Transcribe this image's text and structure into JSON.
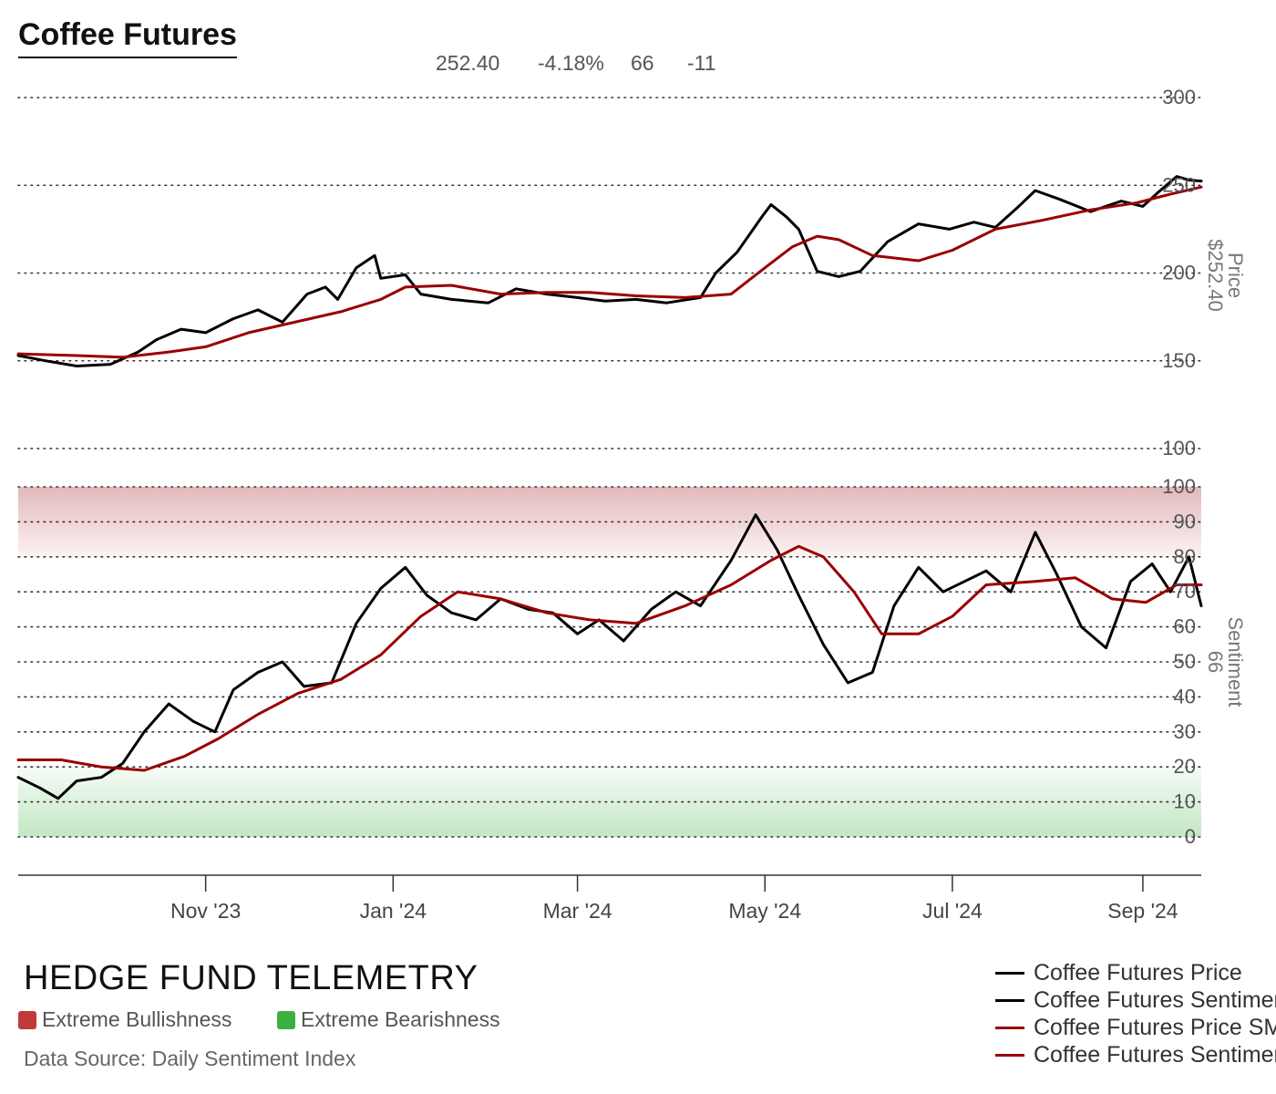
{
  "title": "Coffee Futures",
  "stats": [
    "252.40",
    "-4.18%",
    "66",
    "-11"
  ],
  "brand": "HEDGE FUND TELEMETRY",
  "key": [
    {
      "label": "Extreme Bullishness",
      "color": "#c0393b"
    },
    {
      "label": "Extreme Bearishness",
      "color": "#3cb043"
    }
  ],
  "source": "Data Source: Daily Sentiment Index",
  "legend": [
    {
      "label": "Coffee Futures Price",
      "color": "#000000"
    },
    {
      "label": "Coffee Futures Sentiment",
      "color": "#000000"
    },
    {
      "label": "Coffee Futures Price SMA",
      "color": "#990000"
    },
    {
      "label": "Coffee Futures Sentiment SMA",
      "color": "#990000"
    }
  ],
  "chart_data": [
    {
      "type": "line",
      "axis_label": "Price",
      "axis_value": "$252.40",
      "ylim": [
        100,
        300
      ],
      "yticks": [
        100,
        150,
        200,
        250,
        300
      ],
      "grid": true,
      "x_range": [
        "2023-09-01",
        "2024-09-20"
      ],
      "series": [
        {
          "name": "Coffee Futures Price",
          "color": "#000000",
          "points": [
            [
              "2023-09-01",
              153
            ],
            [
              "2023-09-10",
              150
            ],
            [
              "2023-09-20",
              147
            ],
            [
              "2023-10-01",
              148
            ],
            [
              "2023-10-10",
              155
            ],
            [
              "2023-10-16",
              162
            ],
            [
              "2023-10-24",
              168
            ],
            [
              "2023-11-01",
              166
            ],
            [
              "2023-11-10",
              174
            ],
            [
              "2023-11-18",
              179
            ],
            [
              "2023-11-26",
              172
            ],
            [
              "2023-12-04",
              188
            ],
            [
              "2023-12-10",
              192
            ],
            [
              "2023-12-14",
              185
            ],
            [
              "2023-12-20",
              203
            ],
            [
              "2023-12-26",
              210
            ],
            [
              "2023-12-28",
              197
            ],
            [
              "2024-01-05",
              199
            ],
            [
              "2024-01-10",
              188
            ],
            [
              "2024-01-20",
              185
            ],
            [
              "2024-02-01",
              183
            ],
            [
              "2024-02-10",
              191
            ],
            [
              "2024-02-20",
              188
            ],
            [
              "2024-03-01",
              186
            ],
            [
              "2024-03-10",
              184
            ],
            [
              "2024-03-20",
              185
            ],
            [
              "2024-03-30",
              183
            ],
            [
              "2024-04-10",
              186
            ],
            [
              "2024-04-15",
              200
            ],
            [
              "2024-04-22",
              212
            ],
            [
              "2024-04-30",
              232
            ],
            [
              "2024-05-03",
              239
            ],
            [
              "2024-05-08",
              232
            ],
            [
              "2024-05-12",
              225
            ],
            [
              "2024-05-18",
              201
            ],
            [
              "2024-05-25",
              198
            ],
            [
              "2024-06-01",
              201
            ],
            [
              "2024-06-10",
              218
            ],
            [
              "2024-06-20",
              228
            ],
            [
              "2024-06-30",
              225
            ],
            [
              "2024-07-08",
              229
            ],
            [
              "2024-07-15",
              226
            ],
            [
              "2024-07-22",
              237
            ],
            [
              "2024-07-28",
              247
            ],
            [
              "2024-08-05",
              242
            ],
            [
              "2024-08-15",
              235
            ],
            [
              "2024-08-25",
              241
            ],
            [
              "2024-09-01",
              238
            ],
            [
              "2024-09-06",
              246
            ],
            [
              "2024-09-12",
              255
            ],
            [
              "2024-09-16",
              253
            ],
            [
              "2024-09-20",
              252.4
            ]
          ]
        },
        {
          "name": "Coffee Futures Price SMA",
          "color": "#990000",
          "points": [
            [
              "2023-09-01",
              154
            ],
            [
              "2023-09-20",
              153
            ],
            [
              "2023-10-05",
              152
            ],
            [
              "2023-10-20",
              155
            ],
            [
              "2023-11-01",
              158
            ],
            [
              "2023-11-15",
              166
            ],
            [
              "2023-11-30",
              172
            ],
            [
              "2023-12-15",
              178
            ],
            [
              "2023-12-28",
              185
            ],
            [
              "2024-01-05",
              192
            ],
            [
              "2024-01-20",
              193
            ],
            [
              "2024-02-05",
              188
            ],
            [
              "2024-02-20",
              189
            ],
            [
              "2024-03-05",
              189
            ],
            [
              "2024-03-20",
              187
            ],
            [
              "2024-04-05",
              186
            ],
            [
              "2024-04-20",
              188
            ],
            [
              "2024-05-01",
              203
            ],
            [
              "2024-05-10",
              215
            ],
            [
              "2024-05-18",
              221
            ],
            [
              "2024-05-25",
              219
            ],
            [
              "2024-06-05",
              210
            ],
            [
              "2024-06-20",
              207
            ],
            [
              "2024-07-01",
              213
            ],
            [
              "2024-07-15",
              225
            ],
            [
              "2024-07-30",
              230
            ],
            [
              "2024-08-15",
              236
            ],
            [
              "2024-08-30",
              240
            ],
            [
              "2024-09-10",
              245
            ],
            [
              "2024-09-20",
              249
            ]
          ]
        }
      ]
    },
    {
      "type": "line",
      "axis_label": "Sentiment",
      "axis_value": "66",
      "ylim": [
        0,
        100
      ],
      "yticks": [
        0,
        10,
        20,
        30,
        40,
        50,
        60,
        70,
        80,
        90,
        100
      ],
      "bands": [
        {
          "from": 80,
          "to": 100,
          "label": "Extreme Bullishness",
          "color": "#c0393b"
        },
        {
          "from": 0,
          "to": 20,
          "label": "Extreme Bearishness",
          "color": "#3cb043"
        }
      ],
      "grid": true,
      "series": [
        {
          "name": "Coffee Futures Sentiment",
          "color": "#000000",
          "points": [
            [
              "2023-09-01",
              17
            ],
            [
              "2023-09-08",
              14
            ],
            [
              "2023-09-14",
              11
            ],
            [
              "2023-09-20",
              16
            ],
            [
              "2023-09-28",
              17
            ],
            [
              "2023-10-05",
              21
            ],
            [
              "2023-10-12",
              30
            ],
            [
              "2023-10-20",
              38
            ],
            [
              "2023-10-28",
              33
            ],
            [
              "2023-11-04",
              30
            ],
            [
              "2023-11-10",
              42
            ],
            [
              "2023-11-18",
              47
            ],
            [
              "2023-11-26",
              50
            ],
            [
              "2023-12-03",
              43
            ],
            [
              "2023-12-12",
              44
            ],
            [
              "2023-12-20",
              61
            ],
            [
              "2023-12-28",
              71
            ],
            [
              "2024-01-05",
              77
            ],
            [
              "2024-01-12",
              69
            ],
            [
              "2024-01-20",
              64
            ],
            [
              "2024-01-28",
              62
            ],
            [
              "2024-02-05",
              68
            ],
            [
              "2024-02-14",
              65
            ],
            [
              "2024-02-22",
              64
            ],
            [
              "2024-03-01",
              58
            ],
            [
              "2024-03-08",
              62
            ],
            [
              "2024-03-16",
              56
            ],
            [
              "2024-03-25",
              65
            ],
            [
              "2024-04-02",
              70
            ],
            [
              "2024-04-10",
              66
            ],
            [
              "2024-04-20",
              79
            ],
            [
              "2024-04-28",
              92
            ],
            [
              "2024-05-05",
              82
            ],
            [
              "2024-05-12",
              69
            ],
            [
              "2024-05-20",
              55
            ],
            [
              "2024-05-28",
              44
            ],
            [
              "2024-06-05",
              47
            ],
            [
              "2024-06-12",
              66
            ],
            [
              "2024-06-20",
              77
            ],
            [
              "2024-06-28",
              70
            ],
            [
              "2024-07-05",
              73
            ],
            [
              "2024-07-12",
              76
            ],
            [
              "2024-07-20",
              70
            ],
            [
              "2024-07-28",
              87
            ],
            [
              "2024-08-04",
              75
            ],
            [
              "2024-08-12",
              60
            ],
            [
              "2024-08-20",
              54
            ],
            [
              "2024-08-28",
              73
            ],
            [
              "2024-09-04",
              78
            ],
            [
              "2024-09-10",
              70
            ],
            [
              "2024-09-16",
              80
            ],
            [
              "2024-09-20",
              66
            ]
          ]
        },
        {
          "name": "Coffee Futures Sentiment SMA",
          "color": "#990000",
          "points": [
            [
              "2023-09-01",
              22
            ],
            [
              "2023-09-15",
              22
            ],
            [
              "2023-09-28",
              20
            ],
            [
              "2023-10-12",
              19
            ],
            [
              "2023-10-25",
              23
            ],
            [
              "2023-11-05",
              28
            ],
            [
              "2023-11-18",
              35
            ],
            [
              "2023-12-01",
              41
            ],
            [
              "2023-12-15",
              45
            ],
            [
              "2023-12-28",
              52
            ],
            [
              "2024-01-10",
              63
            ],
            [
              "2024-01-22",
              70
            ],
            [
              "2024-02-05",
              68
            ],
            [
              "2024-02-20",
              64
            ],
            [
              "2024-03-05",
              62
            ],
            [
              "2024-03-20",
              61
            ],
            [
              "2024-04-05",
              66
            ],
            [
              "2024-04-20",
              72
            ],
            [
              "2024-05-03",
              79
            ],
            [
              "2024-05-12",
              83
            ],
            [
              "2024-05-20",
              80
            ],
            [
              "2024-05-30",
              70
            ],
            [
              "2024-06-08",
              58
            ],
            [
              "2024-06-20",
              58
            ],
            [
              "2024-07-01",
              63
            ],
            [
              "2024-07-12",
              72
            ],
            [
              "2024-07-28",
              73
            ],
            [
              "2024-08-10",
              74
            ],
            [
              "2024-08-22",
              68
            ],
            [
              "2024-09-02",
              67
            ],
            [
              "2024-09-12",
              72
            ],
            [
              "2024-09-20",
              72
            ]
          ]
        }
      ]
    }
  ],
  "x_axis": {
    "ticks": [
      {
        "date": "2023-11-01",
        "label": "Nov '23"
      },
      {
        "date": "2024-01-01",
        "label": "Jan '24"
      },
      {
        "date": "2024-03-01",
        "label": "Mar '24"
      },
      {
        "date": "2024-05-01",
        "label": "May '24"
      },
      {
        "date": "2024-07-01",
        "label": "Jul '24"
      },
      {
        "date": "2024-09-01",
        "label": "Sep '24"
      }
    ]
  }
}
